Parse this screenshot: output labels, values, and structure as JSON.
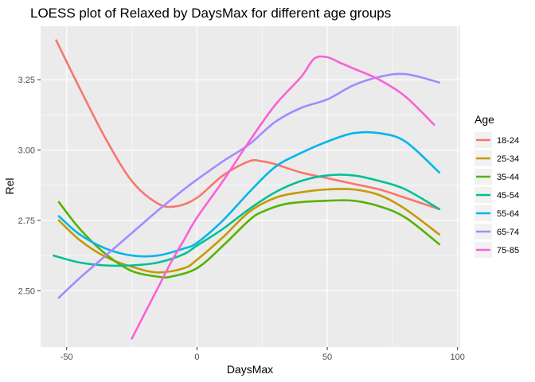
{
  "chart_data": {
    "type": "line",
    "title": "LOESS plot of Relaxed by DaysMax for different age groups",
    "xlabel": "DaysMax",
    "ylabel": "Rel",
    "xlim": [
      -60,
      101
    ],
    "ylim": [
      2.3,
      3.44
    ],
    "x_ticks": [
      -50,
      0,
      50,
      100
    ],
    "x_tick_labels": [
      "-50",
      "0",
      "50",
      "100"
    ],
    "y_ticks": [
      2.5,
      2.75,
      3.0,
      3.25
    ],
    "y_tick_labels": [
      "2.50",
      "2.75",
      "3.00",
      "3.25"
    ],
    "grid": true,
    "legend": {
      "title": "Age",
      "placement": "right"
    },
    "series": [
      {
        "name": "18-24",
        "color": "#F8766D",
        "x": [
          -54,
          -45,
          -35,
          -25,
          -15,
          -8,
          0,
          10,
          20,
          25,
          30,
          40,
          50,
          60,
          70,
          80,
          93
        ],
        "y": [
          3.39,
          3.22,
          3.04,
          2.89,
          2.81,
          2.8,
          2.83,
          2.91,
          2.96,
          2.96,
          2.95,
          2.92,
          2.9,
          2.88,
          2.86,
          2.83,
          2.79
        ]
      },
      {
        "name": "25-34",
        "color": "#C49A00",
        "x": [
          -53,
          -45,
          -35,
          -25,
          -15,
          -5,
          0,
          10,
          20,
          30,
          40,
          50,
          60,
          70,
          80,
          93
        ],
        "y": [
          2.75,
          2.68,
          2.62,
          2.585,
          2.565,
          2.58,
          2.61,
          2.69,
          2.78,
          2.83,
          2.85,
          2.86,
          2.86,
          2.84,
          2.79,
          2.7
        ]
      },
      {
        "name": "35-44",
        "color": "#53B400",
        "x": [
          -53,
          -45,
          -35,
          -25,
          -15,
          -10,
          0,
          10,
          20,
          25,
          35,
          50,
          60,
          70,
          80,
          93
        ],
        "y": [
          2.815,
          2.72,
          2.63,
          2.57,
          2.55,
          2.55,
          2.58,
          2.66,
          2.75,
          2.78,
          2.81,
          2.82,
          2.82,
          2.8,
          2.76,
          2.665
        ]
      },
      {
        "name": "45-54",
        "color": "#00C094",
        "x": [
          -55,
          -45,
          -35,
          -25,
          -15,
          -5,
          0,
          10,
          20,
          30,
          40,
          50,
          60,
          70,
          80,
          93
        ],
        "y": [
          2.625,
          2.6,
          2.59,
          2.59,
          2.6,
          2.63,
          2.66,
          2.72,
          2.79,
          2.85,
          2.89,
          2.91,
          2.91,
          2.89,
          2.86,
          2.79
        ]
      },
      {
        "name": "55-64",
        "color": "#00B6EB",
        "x": [
          -53,
          -45,
          -35,
          -25,
          -15,
          -5,
          0,
          10,
          20,
          30,
          40,
          50,
          60,
          70,
          80,
          93
        ],
        "y": [
          2.765,
          2.7,
          2.65,
          2.625,
          2.625,
          2.65,
          2.67,
          2.75,
          2.85,
          2.94,
          2.99,
          3.03,
          3.06,
          3.06,
          3.03,
          2.92
        ]
      },
      {
        "name": "65-74",
        "color": "#A58AFF",
        "x": [
          -53,
          -45,
          -35,
          -25,
          -15,
          -5,
          0,
          10,
          20,
          30,
          40,
          50,
          60,
          70,
          80,
          93
        ],
        "y": [
          2.475,
          2.545,
          2.625,
          2.705,
          2.785,
          2.86,
          2.895,
          2.96,
          3.02,
          3.1,
          3.15,
          3.18,
          3.23,
          3.26,
          3.27,
          3.24
        ]
      },
      {
        "name": "75-85",
        "color": "#FB61D7",
        "x": [
          -25,
          -20,
          -15,
          -10,
          -5,
          0,
          10,
          20,
          30,
          40,
          45,
          50,
          55,
          60,
          70,
          80,
          91
        ],
        "y": [
          2.33,
          2.42,
          2.51,
          2.6,
          2.68,
          2.76,
          2.89,
          3.03,
          3.16,
          3.26,
          3.325,
          3.33,
          3.31,
          3.29,
          3.25,
          3.19,
          3.09
        ]
      }
    ]
  }
}
